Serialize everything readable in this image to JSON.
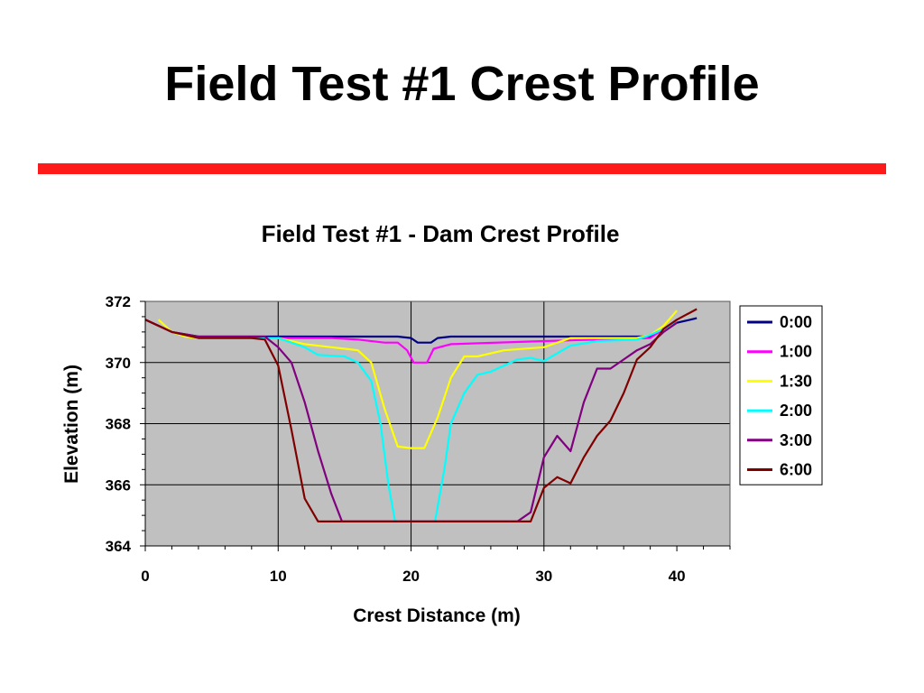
{
  "slide": {
    "title": "Field Test #1 Crest Profile",
    "rule_color": "#ff1a1a"
  },
  "chart_data": {
    "type": "line",
    "title": "Field Test #1 - Dam Crest Profile",
    "xlabel": "Crest Distance (m)",
    "ylabel": "Elevation (m)",
    "xlim": [
      0,
      44
    ],
    "ylim": [
      364,
      372
    ],
    "xticks": [
      0,
      10,
      20,
      30,
      40
    ],
    "yticks": [
      364,
      366,
      368,
      370,
      372
    ],
    "grid": true,
    "plot_background": "#c0c0c0",
    "legend_position": "right",
    "series": [
      {
        "name": "0:00",
        "color": "#000080",
        "points": [
          [
            0,
            371.4
          ],
          [
            2,
            371.0
          ],
          [
            4,
            370.85
          ],
          [
            10,
            370.85
          ],
          [
            19,
            370.85
          ],
          [
            20,
            370.8
          ],
          [
            20.5,
            370.65
          ],
          [
            21.5,
            370.65
          ],
          [
            22,
            370.8
          ],
          [
            23,
            370.85
          ],
          [
            38,
            370.85
          ],
          [
            39,
            371.1
          ],
          [
            40,
            371.3
          ],
          [
            41.5,
            371.45
          ]
        ]
      },
      {
        "name": "1:00",
        "color": "#ff00ff",
        "points": [
          [
            0,
            371.4
          ],
          [
            2,
            371.0
          ],
          [
            4,
            370.8
          ],
          [
            10,
            370.8
          ],
          [
            14,
            370.8
          ],
          [
            16,
            370.75
          ],
          [
            18,
            370.65
          ],
          [
            19,
            370.65
          ],
          [
            19.7,
            370.4
          ],
          [
            20.2,
            370.0
          ],
          [
            21.2,
            370.0
          ],
          [
            21.7,
            370.45
          ],
          [
            23,
            370.6
          ],
          [
            30,
            370.7
          ],
          [
            38,
            370.8
          ],
          [
            39,
            371.1
          ],
          [
            40,
            371.3
          ]
        ]
      },
      {
        "name": "1:30",
        "color": "#ffff00",
        "points": [
          [
            1,
            371.4
          ],
          [
            2,
            371.0
          ],
          [
            3,
            370.85
          ],
          [
            4,
            370.8
          ],
          [
            10,
            370.8
          ],
          [
            12,
            370.6
          ],
          [
            14,
            370.5
          ],
          [
            16,
            370.4
          ],
          [
            17,
            370.0
          ],
          [
            18,
            368.5
          ],
          [
            19,
            367.25
          ],
          [
            20,
            367.2
          ],
          [
            21,
            367.2
          ],
          [
            22,
            368.2
          ],
          [
            23,
            369.5
          ],
          [
            24,
            370.2
          ],
          [
            25,
            370.2
          ],
          [
            27,
            370.4
          ],
          [
            30,
            370.5
          ],
          [
            32,
            370.8
          ],
          [
            37,
            370.8
          ],
          [
            38,
            370.9
          ],
          [
            39,
            371.2
          ],
          [
            40,
            371.7
          ]
        ]
      },
      {
        "name": "2:00",
        "color": "#00ffff",
        "points": [
          [
            0,
            371.4
          ],
          [
            2,
            371.0
          ],
          [
            4,
            370.8
          ],
          [
            10,
            370.8
          ],
          [
            12,
            370.5
          ],
          [
            13,
            370.25
          ],
          [
            15,
            370.2
          ],
          [
            16,
            370.0
          ],
          [
            17,
            369.4
          ],
          [
            17.7,
            368.0
          ],
          [
            18.3,
            366.0
          ],
          [
            18.8,
            364.8
          ],
          [
            21.8,
            364.8
          ],
          [
            22.5,
            366.5
          ],
          [
            23,
            368.0
          ],
          [
            24,
            369.0
          ],
          [
            25,
            369.6
          ],
          [
            26,
            369.7
          ],
          [
            28,
            370.1
          ],
          [
            29,
            370.15
          ],
          [
            30,
            370.05
          ],
          [
            31,
            370.3
          ],
          [
            32,
            370.55
          ],
          [
            34,
            370.7
          ],
          [
            37,
            370.75
          ],
          [
            38,
            370.9
          ],
          [
            39,
            371.1
          ],
          [
            40,
            371.3
          ]
        ]
      },
      {
        "name": "3:00",
        "color": "#800080",
        "points": [
          [
            0,
            371.4
          ],
          [
            2,
            371.0
          ],
          [
            4,
            370.85
          ],
          [
            9,
            370.85
          ],
          [
            10,
            370.5
          ],
          [
            11,
            370.0
          ],
          [
            12,
            368.7
          ],
          [
            13,
            367.1
          ],
          [
            14,
            365.7
          ],
          [
            14.8,
            364.8
          ],
          [
            28,
            364.8
          ],
          [
            29,
            365.1
          ],
          [
            30,
            366.9
          ],
          [
            31,
            367.6
          ],
          [
            32,
            367.1
          ],
          [
            33,
            368.7
          ],
          [
            34,
            369.8
          ],
          [
            35,
            369.8
          ],
          [
            36,
            370.1
          ],
          [
            37,
            370.4
          ],
          [
            38,
            370.6
          ],
          [
            39,
            371.0
          ],
          [
            40,
            371.3
          ]
        ]
      },
      {
        "name": "6:00",
        "color": "#800000",
        "points": [
          [
            0,
            371.4
          ],
          [
            2,
            371.0
          ],
          [
            4,
            370.8
          ],
          [
            8,
            370.8
          ],
          [
            9,
            370.75
          ],
          [
            10,
            369.9
          ],
          [
            11,
            367.8
          ],
          [
            12,
            365.55
          ],
          [
            13,
            364.8
          ],
          [
            29,
            364.8
          ],
          [
            30,
            365.9
          ],
          [
            31,
            366.25
          ],
          [
            32,
            366.05
          ],
          [
            33,
            366.9
          ],
          [
            34,
            367.6
          ],
          [
            35,
            368.1
          ],
          [
            36,
            369.0
          ],
          [
            37,
            370.1
          ],
          [
            38,
            370.5
          ],
          [
            39,
            371.1
          ],
          [
            40,
            371.4
          ],
          [
            41.5,
            371.75
          ]
        ]
      }
    ]
  }
}
